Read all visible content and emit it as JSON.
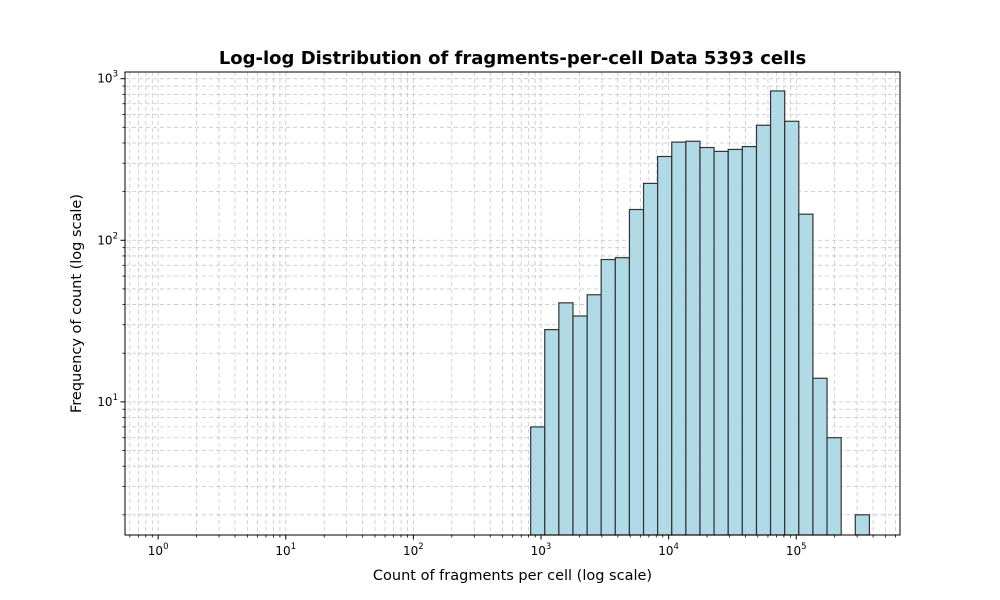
{
  "chart_data": {
    "type": "bar",
    "title": "Log-log Distribution of fragments-per-cell Data 5393 cells",
    "xlabel": "Count of fragments per cell (log scale)",
    "ylabel": "Frequency of count (log scale)",
    "x_scale": "log",
    "y_scale": "log",
    "xlim": [
      0.55,
      650000
    ],
    "ylim": [
      1.5,
      1100
    ],
    "x_ticks": [
      {
        "base": "10",
        "exp": "0",
        "value": 1
      },
      {
        "base": "10",
        "exp": "1",
        "value": 10
      },
      {
        "base": "10",
        "exp": "2",
        "value": 100
      },
      {
        "base": "10",
        "exp": "3",
        "value": 1000
      },
      {
        "base": "10",
        "exp": "4",
        "value": 10000
      },
      {
        "base": "10",
        "exp": "5",
        "value": 100000
      }
    ],
    "y_ticks": [
      {
        "base": "10",
        "exp": "1",
        "value": 10
      },
      {
        "base": "10",
        "exp": "2",
        "value": 100
      },
      {
        "base": "10",
        "exp": "3",
        "value": 1000
      }
    ],
    "bin_edges": [
      830,
      1070,
      1380,
      1780,
      2300,
      2960,
      3820,
      4930,
      6360,
      8200,
      10580,
      13650,
      17600,
      22700,
      29300,
      37800,
      48800,
      62900,
      81200,
      104700,
      135100,
      174300,
      224900,
      290100,
      374300
    ],
    "counts": [
      7,
      28,
      41,
      34,
      46,
      76,
      78,
      155,
      225,
      330,
      405,
      410,
      375,
      355,
      365,
      380,
      515,
      840,
      545,
      145,
      14,
      6,
      0,
      2
    ],
    "bar_color": "#add8e6",
    "edge_color": "#333333",
    "grid": true
  }
}
